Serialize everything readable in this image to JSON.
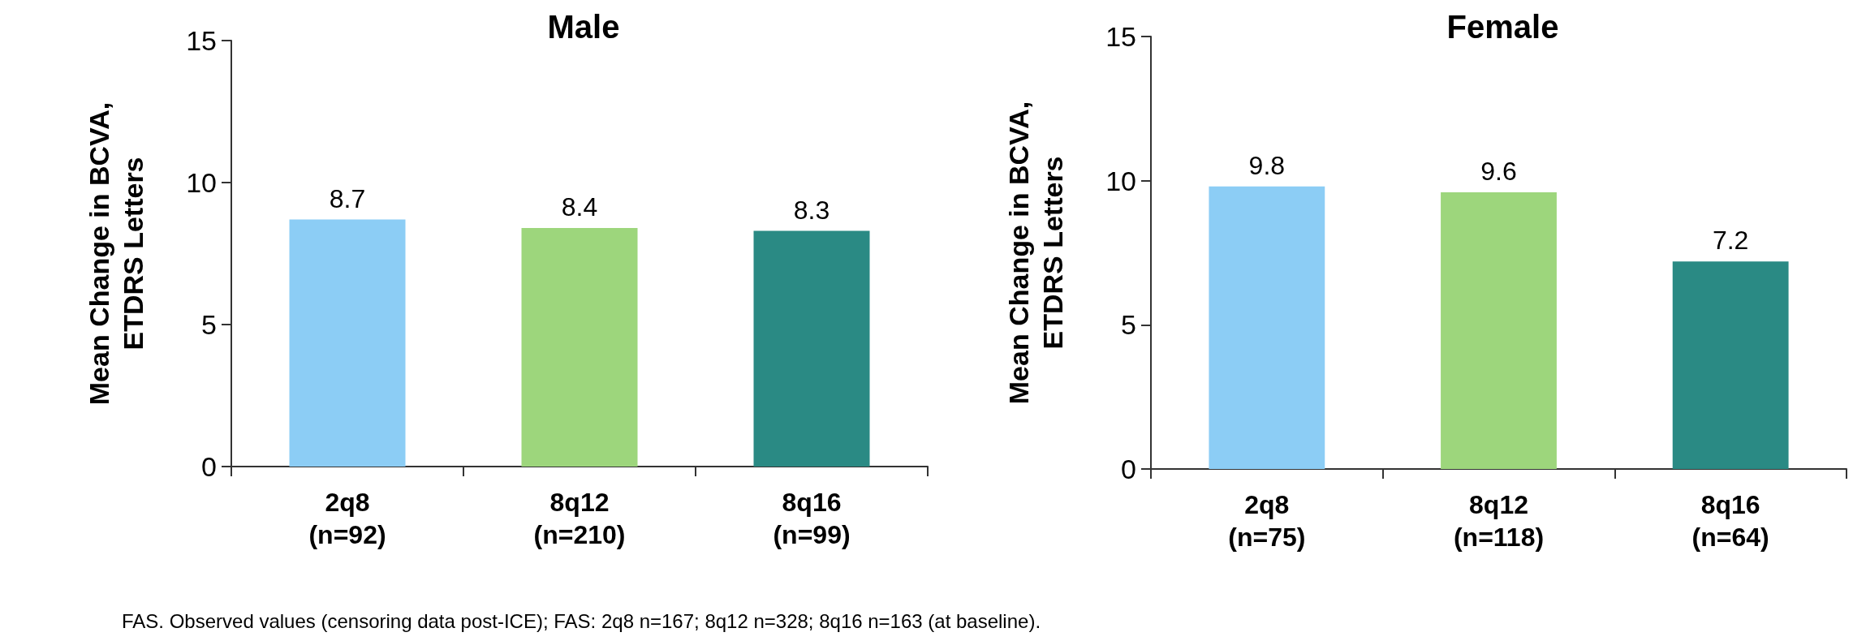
{
  "chart_data": [
    {
      "type": "bar",
      "title": "Male",
      "ylabel": "Mean Change in BCVA,\nETDRS Letters",
      "categories": [
        "2q8\n(n=92)",
        "8q12\n(n=210)",
        "8q16\n(n=99)"
      ],
      "values": [
        8.7,
        8.4,
        8.3
      ],
      "colors": [
        "#8ccdf5",
        "#9dd67c",
        "#2a8a84"
      ],
      "ylim": [
        0,
        15
      ],
      "yticks": [
        0,
        5,
        10,
        15
      ],
      "data_labels": true,
      "annotations": [
        "FAS. Observed values (censoring data post-ICE); FAS: 2q8 n=167; 8q12 n=328; 8q16 n=163 (at baseline)."
      ]
    },
    {
      "type": "bar",
      "title": "Female",
      "ylabel": "Mean Change in BCVA,\nETDRS Letters",
      "categories": [
        "2q8\n(n=75)",
        "8q12\n(n=118)",
        "8q16\n(n=64)"
      ],
      "values": [
        9.8,
        9.6,
        7.2
      ],
      "colors": [
        "#8ccdf5",
        "#9dd67c",
        "#2a8a84"
      ],
      "ylim": [
        0,
        15
      ],
      "yticks": [
        0,
        5,
        10,
        15
      ],
      "data_labels": true
    }
  ]
}
